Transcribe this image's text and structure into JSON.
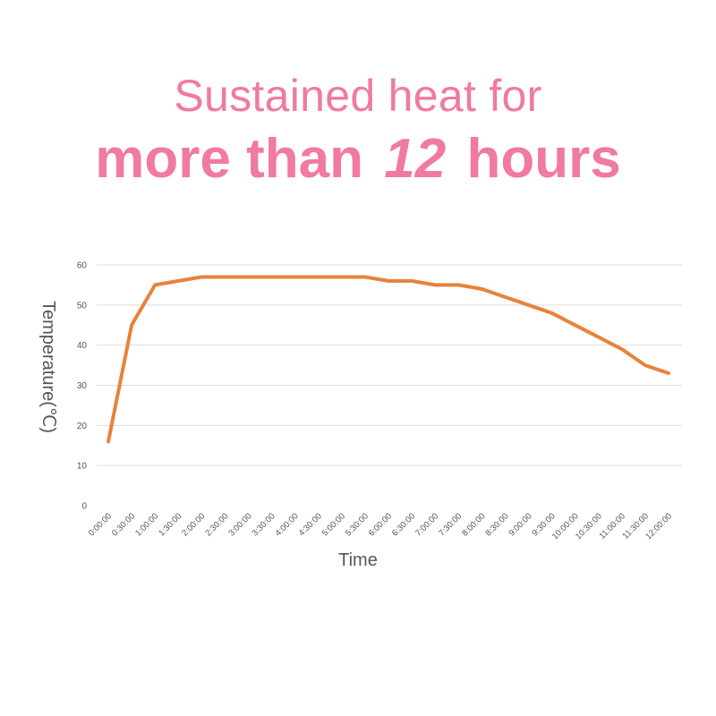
{
  "headline": {
    "line1": "Sustained heat for",
    "line2_a": "more than",
    "line2_num": "12",
    "line2_b": "hours"
  },
  "colors": {
    "headline": "#f07aa0",
    "series": "#e8823a",
    "grid": "#dddddd"
  },
  "chart_data": {
    "type": "line",
    "xlabel": "Time",
    "ylabel": "Temperature(℃)",
    "ylim": [
      0,
      60
    ],
    "yticks": [
      0,
      10,
      20,
      30,
      40,
      50,
      60
    ],
    "grid": true,
    "categories": [
      "0:00:00",
      "0:30:00",
      "1:00:00",
      "1:30:00",
      "2:00:00",
      "2:30:00",
      "3:00:00",
      "3:30:00",
      "4:00:00",
      "4:30:00",
      "5:00:00",
      "5:30:00",
      "6:00:00",
      "6:30:00",
      "7:00:00",
      "7:30:00",
      "8:00:00",
      "8:30:00",
      "9:00:00",
      "9:30:00",
      "10:00:00",
      "10:30:00",
      "11:00:00",
      "11:30:00",
      "12:00:00"
    ],
    "series": [
      {
        "values": [
          16,
          45,
          55,
          56,
          57,
          57,
          57,
          57,
          57,
          57,
          57,
          57,
          56,
          56,
          55,
          55,
          54,
          52,
          50,
          48,
          45,
          42,
          39,
          35,
          33
        ]
      }
    ]
  }
}
